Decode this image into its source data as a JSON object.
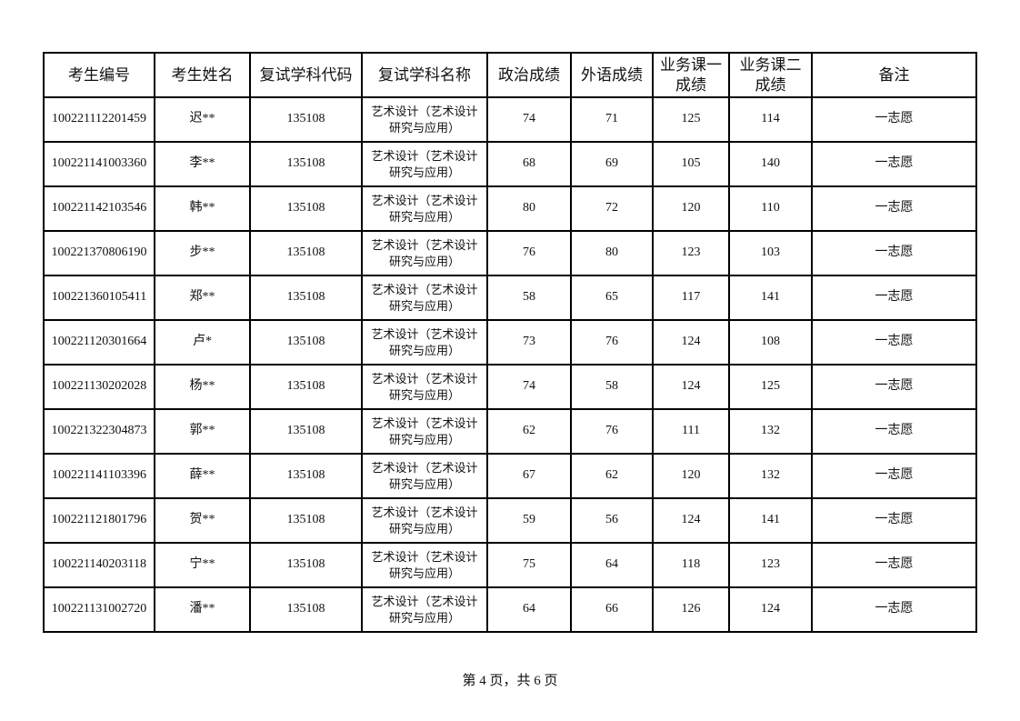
{
  "page": {
    "footer": "第 4 页，共 6 页"
  },
  "table": {
    "columns": [
      "考生编号",
      "考生姓名",
      "复试学科代码",
      "复试学科名称",
      "政治成绩",
      "外语成绩",
      "业务课一成绩",
      "业务课二成绩",
      "备注"
    ],
    "column_keys": [
      "candidate-id",
      "candidate-name",
      "subject-code",
      "subject-name",
      "politics-score",
      "foreign-language-score",
      "course1-score",
      "course2-score",
      "remark"
    ],
    "rows": [
      [
        "100221112201459",
        "迟**",
        "135108",
        "艺术设计（艺术设计研究与应用）",
        "74",
        "71",
        "125",
        "114",
        "一志愿"
      ],
      [
        "100221141003360",
        "李**",
        "135108",
        "艺术设计（艺术设计研究与应用）",
        "68",
        "69",
        "105",
        "140",
        "一志愿"
      ],
      [
        "100221142103546",
        "韩**",
        "135108",
        "艺术设计（艺术设计研究与应用）",
        "80",
        "72",
        "120",
        "110",
        "一志愿"
      ],
      [
        "100221370806190",
        "步**",
        "135108",
        "艺术设计（艺术设计研究与应用）",
        "76",
        "80",
        "123",
        "103",
        "一志愿"
      ],
      [
        "100221360105411",
        "郑**",
        "135108",
        "艺术设计（艺术设计研究与应用）",
        "58",
        "65",
        "117",
        "141",
        "一志愿"
      ],
      [
        "100221120301664",
        "卢*",
        "135108",
        "艺术设计（艺术设计研究与应用）",
        "73",
        "76",
        "124",
        "108",
        "一志愿"
      ],
      [
        "100221130202028",
        "杨**",
        "135108",
        "艺术设计（艺术设计研究与应用）",
        "74",
        "58",
        "124",
        "125",
        "一志愿"
      ],
      [
        "100221322304873",
        "郭**",
        "135108",
        "艺术设计（艺术设计研究与应用）",
        "62",
        "76",
        "111",
        "132",
        "一志愿"
      ],
      [
        "100221141103396",
        "薛**",
        "135108",
        "艺术设计（艺术设计研究与应用）",
        "67",
        "62",
        "120",
        "132",
        "一志愿"
      ],
      [
        "100221121801796",
        "贺**",
        "135108",
        "艺术设计（艺术设计研究与应用）",
        "59",
        "56",
        "124",
        "141",
        "一志愿"
      ],
      [
        "100221140203118",
        "宁**",
        "135108",
        "艺术设计（艺术设计研究与应用）",
        "75",
        "64",
        "118",
        "123",
        "一志愿"
      ],
      [
        "100221131002720",
        "潘**",
        "135108",
        "艺术设计（艺术设计研究与应用）",
        "64",
        "66",
        "126",
        "124",
        "一志愿"
      ]
    ]
  }
}
